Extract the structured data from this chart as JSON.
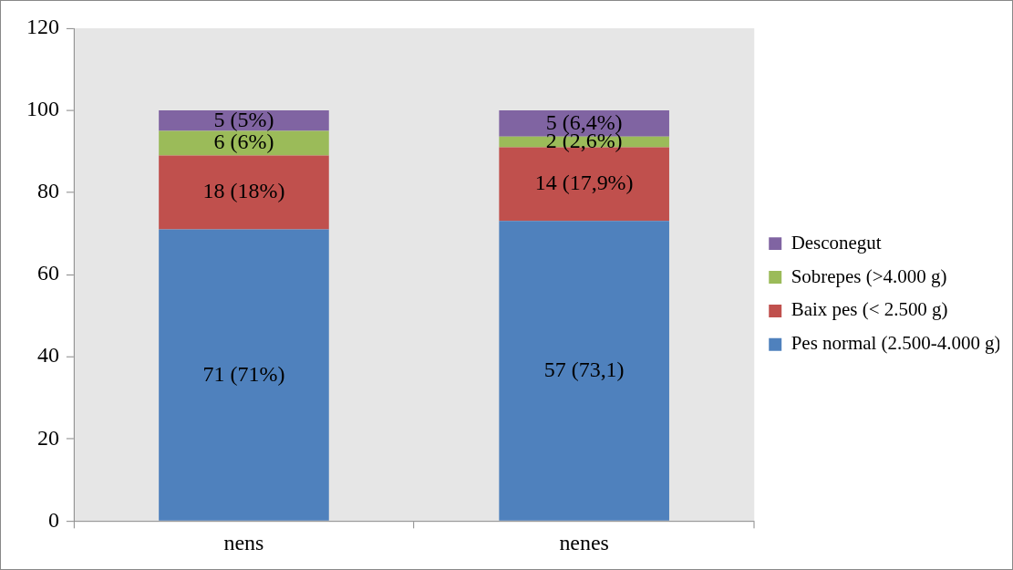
{
  "chart_data": {
    "type": "bar",
    "stacked": true,
    "categories": [
      "nens",
      "nenes"
    ],
    "ylim": [
      0,
      120
    ],
    "yticks": [
      0,
      20,
      40,
      60,
      80,
      100,
      120
    ],
    "grid": false,
    "legend": "right",
    "series": [
      {
        "name": "Pes normal (2.500-4.000 g)",
        "color": "#4f81bd",
        "values": [
          71,
          73.1
        ],
        "value_labels": [
          "71 (71%)",
          "57 (73,1)"
        ]
      },
      {
        "name": "Baix pes (< 2.500 g)",
        "color": "#c0504d",
        "values": [
          18,
          17.9
        ],
        "value_labels": [
          "18 (18%)",
          "14 (17,9%)"
        ]
      },
      {
        "name": "Sobrepes (>4.000 g)",
        "color": "#9bbb59",
        "values": [
          6,
          2.6
        ],
        "value_labels": [
          "6 (6%)",
          "2 (2,6%)"
        ]
      },
      {
        "name": "Desconegut",
        "color": "#8064a2",
        "values": [
          5,
          6.4
        ],
        "value_labels": [
          "5 (5%)",
          "5 (6,4%)"
        ]
      }
    ]
  }
}
